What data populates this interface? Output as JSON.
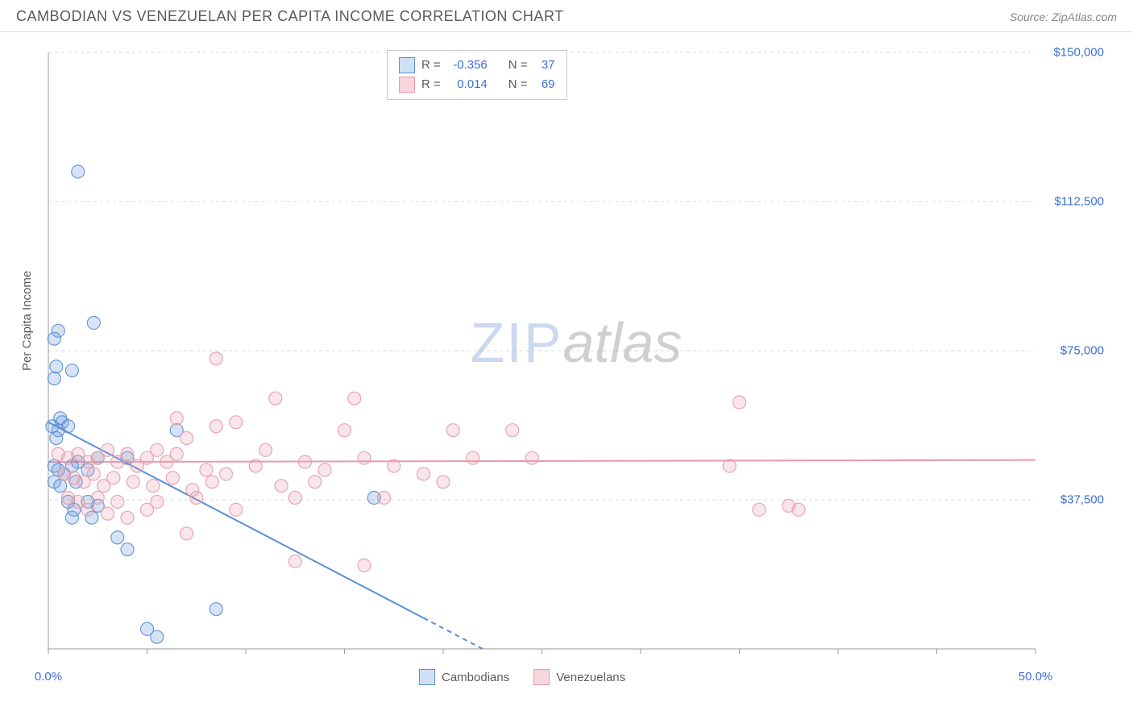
{
  "header": {
    "title": "CAMBODIAN VS VENEZUELAN PER CAPITA INCOME CORRELATION CHART",
    "source": "Source: ZipAtlas.com"
  },
  "watermark": {
    "part1": "ZIP",
    "part2": "atlas"
  },
  "chart": {
    "type": "scatter",
    "ylabel": "Per Capita Income",
    "xlim": [
      0,
      50
    ],
    "ylim": [
      0,
      150000
    ],
    "xticks_major": [
      0,
      5,
      10,
      15,
      20,
      25,
      30,
      35,
      40,
      45,
      50
    ],
    "xtick_labels": {
      "0": "0.0%",
      "50": "50.0%"
    },
    "yticks": [
      37500,
      75000,
      112500,
      150000
    ],
    "ytick_labels": [
      "$37,500",
      "$75,000",
      "$112,500",
      "$150,000"
    ],
    "grid_color": "#d8d8d8",
    "axis_color": "#9a9a9a",
    "background_color": "#ffffff",
    "marker_radius": 8,
    "marker_fill_opacity": 0.25,
    "marker_stroke_opacity": 0.9,
    "trend_line_width": 2,
    "series": [
      {
        "name": "Cambodians",
        "color": "#5b8fd6",
        "r": -0.356,
        "n": 37,
        "trend": {
          "x1": 0,
          "y1": 57000,
          "x2": 22,
          "y2": 0,
          "dash_after_x": 19
        },
        "points": [
          [
            1.5,
            120000
          ],
          [
            0.5,
            80000
          ],
          [
            0.3,
            78000
          ],
          [
            0.4,
            71000
          ],
          [
            1.2,
            70000
          ],
          [
            0.3,
            68000
          ],
          [
            2.3,
            82000
          ],
          [
            0.2,
            56000
          ],
          [
            0.5,
            55000
          ],
          [
            0.7,
            57000
          ],
          [
            0.4,
            53000
          ],
          [
            0.6,
            58000
          ],
          [
            1.0,
            56000
          ],
          [
            6.5,
            55000
          ],
          [
            0.3,
            46000
          ],
          [
            0.5,
            45000
          ],
          [
            1.2,
            46000
          ],
          [
            2.0,
            45000
          ],
          [
            0.8,
            44000
          ],
          [
            1.5,
            47000
          ],
          [
            4.0,
            48000
          ],
          [
            0.3,
            42000
          ],
          [
            0.6,
            41000
          ],
          [
            1.4,
            42000
          ],
          [
            1.0,
            37000
          ],
          [
            1.3,
            35000
          ],
          [
            2.0,
            37000
          ],
          [
            2.5,
            36000
          ],
          [
            1.2,
            33000
          ],
          [
            2.2,
            33000
          ],
          [
            3.5,
            28000
          ],
          [
            4.0,
            25000
          ],
          [
            16.5,
            38000
          ],
          [
            8.5,
            10000
          ],
          [
            5.0,
            5000
          ],
          [
            5.5,
            3000
          ],
          [
            2.5,
            48000
          ]
        ]
      },
      {
        "name": "Venezuelans",
        "color": "#e89aad",
        "r": 0.014,
        "n": 69,
        "trend": {
          "x1": 0,
          "y1": 47000,
          "x2": 50,
          "y2": 47500
        },
        "points": [
          [
            8.5,
            73000
          ],
          [
            11.5,
            63000
          ],
          [
            15.5,
            63000
          ],
          [
            6.5,
            58000
          ],
          [
            8.5,
            56000
          ],
          [
            9.5,
            57000
          ],
          [
            15.0,
            55000
          ],
          [
            20.5,
            55000
          ],
          [
            23.5,
            55000
          ],
          [
            35.0,
            62000
          ],
          [
            0.5,
            49000
          ],
          [
            1.0,
            48000
          ],
          [
            1.5,
            49000
          ],
          [
            2.0,
            47000
          ],
          [
            2.5,
            48000
          ],
          [
            3.0,
            50000
          ],
          [
            3.5,
            47000
          ],
          [
            4.0,
            49000
          ],
          [
            4.5,
            46000
          ],
          [
            5.0,
            48000
          ],
          [
            5.5,
            50000
          ],
          [
            6.0,
            47000
          ],
          [
            6.5,
            49000
          ],
          [
            7.0,
            53000
          ],
          [
            8.0,
            45000
          ],
          [
            10.5,
            46000
          ],
          [
            11.0,
            50000
          ],
          [
            13.0,
            47000
          ],
          [
            14.0,
            45000
          ],
          [
            16.0,
            48000
          ],
          [
            17.5,
            46000
          ],
          [
            19.0,
            44000
          ],
          [
            0.8,
            44000
          ],
          [
            1.3,
            43000
          ],
          [
            1.8,
            42000
          ],
          [
            2.3,
            44000
          ],
          [
            2.8,
            41000
          ],
          [
            3.3,
            43000
          ],
          [
            4.3,
            42000
          ],
          [
            5.3,
            41000
          ],
          [
            6.3,
            43000
          ],
          [
            7.3,
            40000
          ],
          [
            8.3,
            42000
          ],
          [
            9.0,
            44000
          ],
          [
            11.8,
            41000
          ],
          [
            13.5,
            42000
          ],
          [
            1.0,
            38000
          ],
          [
            1.5,
            37000
          ],
          [
            2.5,
            38000
          ],
          [
            3.5,
            37000
          ],
          [
            5.5,
            37000
          ],
          [
            7.5,
            38000
          ],
          [
            12.5,
            38000
          ],
          [
            17.0,
            38000
          ],
          [
            20.0,
            42000
          ],
          [
            21.5,
            48000
          ],
          [
            24.5,
            48000
          ],
          [
            7.0,
            29000
          ],
          [
            12.5,
            22000
          ],
          [
            16.0,
            21000
          ],
          [
            34.5,
            46000
          ],
          [
            36.0,
            35000
          ],
          [
            37.5,
            36000
          ],
          [
            38.0,
            35000
          ],
          [
            4.0,
            33000
          ],
          [
            5.0,
            35000
          ],
          [
            3.0,
            34000
          ],
          [
            2.0,
            35000
          ],
          [
            9.5,
            35000
          ]
        ]
      }
    ],
    "legend_bottom": [
      "Cambodians",
      "Venezuelans"
    ]
  },
  "colors": {
    "title_text": "#5a5a5a",
    "value_text": "#3b6fd6",
    "blue_fill": "#cfe0f5",
    "blue_stroke": "#5b8fd6",
    "pink_fill": "#f7d6de",
    "pink_stroke": "#e89aad"
  }
}
